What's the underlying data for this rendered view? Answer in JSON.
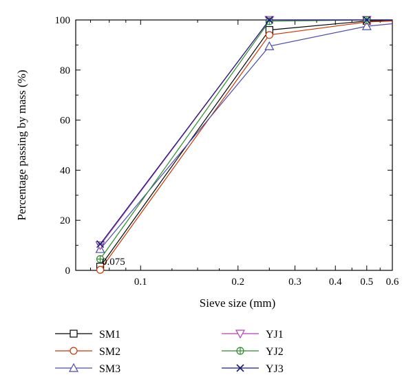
{
  "chart_data": {
    "type": "line",
    "xlabel": "Sieve size (mm)",
    "ylabel": "Percentage passing by mass (%)",
    "x_scale": "log",
    "xlim": [
      0.063,
      0.6
    ],
    "ylim": [
      0,
      100
    ],
    "x_ticks": [
      0.1,
      0.2,
      0.3,
      0.4,
      0.5,
      0.6
    ],
    "x_tick_labels": [
      "0.1",
      "0.2",
      "0.3",
      "0.4",
      "0.5",
      "0.6"
    ],
    "y_ticks": [
      0,
      20,
      40,
      60,
      80,
      100
    ],
    "y_tick_labels": [
      "0",
      "20",
      "40",
      "60",
      "80",
      "100"
    ],
    "annotation": "0.075",
    "grid": false,
    "legend_position": "bottom",
    "x": [
      0.075,
      0.25,
      0.5,
      0.6
    ],
    "series": [
      {
        "name": "SM1",
        "color": "#000000",
        "marker": "square",
        "values": [
          1.5,
          96,
          99.6,
          99.9
        ]
      },
      {
        "name": "SM2",
        "color": "#cc3300",
        "marker": "circle",
        "values": [
          0.2,
          94,
          99.2,
          99.6
        ]
      },
      {
        "name": "SM3",
        "color": "#4a4aaa",
        "marker": "triangle-up",
        "values": [
          8.5,
          89.5,
          97.5,
          98.5
        ]
      },
      {
        "name": "YJ1",
        "color": "#b040b0",
        "marker": "triangle-down",
        "values": [
          10,
          100,
          100,
          100
        ]
      },
      {
        "name": "YJ2",
        "color": "#2a8a2a",
        "marker": "circle-plus",
        "values": [
          4.5,
          99.5,
          100,
          100
        ]
      },
      {
        "name": "YJ3",
        "color": "#1a1a7a",
        "marker": "x-cross",
        "values": [
          10.5,
          100,
          100,
          100
        ]
      }
    ]
  }
}
